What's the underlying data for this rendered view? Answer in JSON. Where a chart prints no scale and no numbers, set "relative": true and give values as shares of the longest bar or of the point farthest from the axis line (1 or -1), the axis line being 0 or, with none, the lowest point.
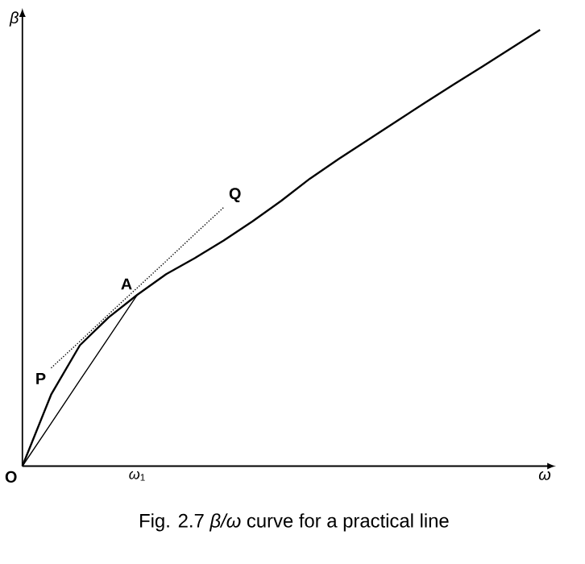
{
  "chart_data": {
    "type": "line",
    "title": "Fig. 2.7    *β/ω* curve for a practical line",
    "xlabel": "*ω*",
    "ylabel": "*β*",
    "relative": true,
    "categories": [
      null,
      null,
      null,
      null,
      null,
      null,
      null,
      null,
      null,
      null,
      null,
      null,
      null,
      null,
      null,
      null,
      null,
      null,
      null
    ],
    "series": [
      {
        "color": "#000000",
        "line_style": "solid",
        "values": [
          0,
          0.164,
          0.277,
          0.341,
          0.393,
          0.44,
          0.477,
          0.517,
          0.561,
          0.608,
          0.659,
          0.704,
          0.747,
          0.79,
          0.833,
          0.875,
          0.916,
          0.958,
          1.0
        ]
      },
      {
        "color": "#000000",
        "line_style": "solid",
        "values": [
          0,
          0.098,
          0.197,
          0.295,
          0.393,
          null,
          null,
          null,
          null,
          null,
          null,
          null,
          null,
          null,
          null,
          null,
          null,
          null,
          null
        ]
      },
      {
        "color": "#000000",
        "line_style": "dotted",
        "values": [
          null,
          0.225,
          0.286,
          0.348,
          0.409,
          0.47,
          0.532,
          0.593,
          null,
          null,
          null,
          null,
          null,
          null,
          null,
          null,
          null,
          null,
          null
        ]
      }
    ],
    "annotations": [
      "O",
      "A",
      "P",
      "Q",
      "*ω*$_{1}$"
    ]
  }
}
